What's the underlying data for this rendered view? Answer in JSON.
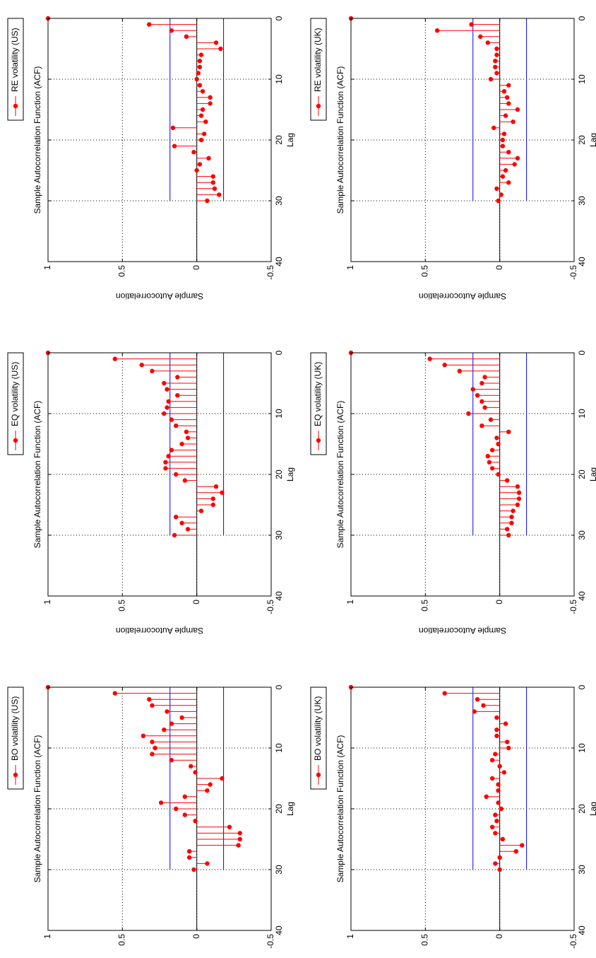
{
  "chart_data": [
    {
      "type": "stem",
      "title": "Sample Autocorrelation Function (ACF)",
      "xlabel": "Lag",
      "ylabel": "Sample Autocorrelation",
      "xlim": [
        0,
        40
      ],
      "ylim": [
        -0.5,
        1
      ],
      "xticks": [
        "0",
        "10",
        "20",
        "30",
        "40"
      ],
      "yticks": [
        "-0.5",
        "0",
        "0.5",
        "1"
      ],
      "grid": true,
      "orientation": "rotated-90-ccw",
      "confidence_bound": 0.18,
      "legend": "RE volatility (US)",
      "legend_position": "top-left",
      "series": {
        "lags": [
          0,
          1,
          2,
          3,
          4,
          5,
          6,
          7,
          8,
          9,
          10,
          11,
          12,
          13,
          14,
          15,
          16,
          17,
          18,
          19,
          20,
          21,
          22,
          23,
          24,
          25,
          26,
          27,
          28,
          29,
          30
        ],
        "values": [
          1.0,
          0.32,
          0.17,
          0.07,
          -0.13,
          -0.16,
          -0.03,
          -0.02,
          -0.02,
          -0.01,
          0.0,
          -0.02,
          -0.04,
          -0.09,
          -0.09,
          -0.04,
          -0.03,
          -0.06,
          0.16,
          -0.05,
          -0.03,
          0.15,
          0.02,
          -0.08,
          -0.02,
          0.0,
          -0.11,
          -0.11,
          -0.12,
          -0.15,
          -0.07
        ]
      }
    },
    {
      "type": "stem",
      "title": "Sample Autocorrelation Function (ACF)",
      "xlabel": "Lag",
      "ylabel": "Sample Autocorrelation",
      "xlim": [
        0,
        40
      ],
      "ylim": [
        -0.5,
        1
      ],
      "xticks": [
        "0",
        "10",
        "20",
        "30",
        "40"
      ],
      "yticks": [
        "-0.5",
        "0",
        "0.5",
        "1"
      ],
      "grid": true,
      "orientation": "rotated-90-ccw",
      "confidence_bound": 0.18,
      "legend": "EQ volatility (US)",
      "legend_position": "top-left",
      "series": {
        "lags": [
          0,
          1,
          2,
          3,
          4,
          5,
          6,
          7,
          8,
          9,
          10,
          11,
          12,
          13,
          14,
          15,
          16,
          17,
          18,
          19,
          20,
          21,
          22,
          23,
          24,
          25,
          26,
          27,
          28,
          29,
          30
        ],
        "values": [
          1.0,
          0.55,
          0.37,
          0.3,
          0.13,
          0.22,
          0.2,
          0.13,
          0.19,
          0.2,
          0.22,
          0.17,
          0.14,
          0.07,
          0.06,
          0.1,
          0.17,
          0.19,
          0.21,
          0.21,
          0.14,
          0.08,
          -0.13,
          -0.17,
          -0.11,
          -0.11,
          -0.03,
          0.14,
          0.1,
          0.06,
          0.15
        ]
      }
    },
    {
      "type": "stem",
      "title": "Sample Autocorrelation Function (ACF)",
      "xlabel": "Lag",
      "ylabel": "Sample Autocorrelation",
      "xlim": [
        0,
        40
      ],
      "ylim": [
        -0.5,
        1
      ],
      "xticks": [
        "0",
        "10",
        "20",
        "30",
        "40"
      ],
      "yticks": [
        "-0.5",
        "0",
        "0.5",
        "1"
      ],
      "grid": true,
      "orientation": "rotated-90-ccw",
      "confidence_bound": 0.18,
      "legend": "BO volatility (US)",
      "legend_position": "top-left",
      "series": {
        "lags": [
          0,
          1,
          2,
          3,
          4,
          5,
          6,
          7,
          8,
          9,
          10,
          11,
          12,
          13,
          14,
          15,
          16,
          17,
          18,
          19,
          20,
          21,
          22,
          23,
          24,
          25,
          26,
          27,
          28,
          29,
          30
        ],
        "values": [
          1.0,
          0.55,
          0.32,
          0.3,
          0.2,
          0.1,
          0.17,
          0.22,
          0.36,
          0.3,
          0.28,
          0.3,
          0.17,
          0.04,
          0.01,
          -0.17,
          -0.09,
          -0.07,
          0.08,
          0.24,
          0.14,
          0.08,
          0.01,
          -0.22,
          -0.29,
          -0.29,
          -0.28,
          0.05,
          0.05,
          -0.07,
          0.02
        ]
      }
    },
    {
      "type": "stem",
      "title": "Sample Autocorrelation Function (ACF)",
      "xlabel": "Lag",
      "ylabel": "Sample Autocorrelation",
      "xlim": [
        0,
        40
      ],
      "ylim": [
        -0.5,
        1
      ],
      "xticks": [
        "0",
        "10",
        "20",
        "30",
        "40"
      ],
      "yticks": [
        "-0.5",
        "0",
        "0.5",
        "1"
      ],
      "grid": true,
      "orientation": "rotated-90-ccw",
      "confidence_bound": 0.18,
      "legend": "RE volatility (UK)",
      "legend_position": "top-left",
      "series": {
        "lags": [
          0,
          1,
          2,
          3,
          4,
          5,
          6,
          7,
          8,
          9,
          10,
          11,
          12,
          13,
          14,
          15,
          16,
          17,
          18,
          19,
          20,
          21,
          22,
          23,
          24,
          25,
          26,
          27,
          28,
          29,
          30
        ],
        "values": [
          1.0,
          0.19,
          0.42,
          0.13,
          0.08,
          0.02,
          0.02,
          0.03,
          0.03,
          0.02,
          0.06,
          -0.06,
          -0.03,
          -0.05,
          -0.06,
          -0.12,
          -0.04,
          -0.09,
          0.04,
          -0.03,
          -0.02,
          -0.02,
          -0.06,
          -0.12,
          -0.1,
          -0.04,
          -0.02,
          -0.06,
          0.02,
          -0.01,
          0.01
        ]
      }
    },
    {
      "type": "stem",
      "title": "Sample Autocorrelation Function (ACF)",
      "xlabel": "Lag",
      "ylabel": "Sample Autocorrelation",
      "xlim": [
        0,
        40
      ],
      "ylim": [
        -0.5,
        1
      ],
      "xticks": [
        "0",
        "10",
        "20",
        "30",
        "40"
      ],
      "yticks": [
        "-0.5",
        "0",
        "0.5",
        "1"
      ],
      "grid": true,
      "orientation": "rotated-90-ccw",
      "confidence_bound": 0.18,
      "legend": "EQ volatility (UK)",
      "legend_position": "top-left",
      "series": {
        "lags": [
          0,
          1,
          2,
          3,
          4,
          5,
          6,
          7,
          8,
          9,
          10,
          11,
          12,
          13,
          14,
          15,
          16,
          17,
          18,
          19,
          20,
          21,
          22,
          23,
          24,
          25,
          26,
          27,
          28,
          29,
          30
        ],
        "values": [
          1.0,
          0.47,
          0.37,
          0.27,
          0.1,
          0.12,
          0.18,
          0.15,
          0.12,
          0.1,
          0.21,
          0.06,
          0.12,
          -0.06,
          0.02,
          0.01,
          0.05,
          0.08,
          0.07,
          0.05,
          0.01,
          -0.05,
          -0.12,
          -0.13,
          -0.13,
          -0.12,
          -0.09,
          -0.08,
          -0.08,
          -0.05,
          -0.06
        ]
      }
    },
    {
      "type": "stem",
      "title": "Sample Autocorrelation Function (ACF)",
      "xlabel": "Lag",
      "ylabel": "Sample Autocorrelation",
      "xlim": [
        0,
        40
      ],
      "ylim": [
        -0.5,
        1
      ],
      "xticks": [
        "0",
        "10",
        "20",
        "30",
        "40"
      ],
      "yticks": [
        "-0.5",
        "0",
        "0.5",
        "1"
      ],
      "grid": true,
      "orientation": "rotated-90-ccw",
      "confidence_bound": 0.18,
      "legend": "BO volatility (UK)",
      "legend_position": "top-left",
      "series": {
        "lags": [
          0,
          1,
          2,
          3,
          4,
          5,
          6,
          7,
          8,
          9,
          10,
          11,
          12,
          13,
          14,
          15,
          16,
          17,
          18,
          19,
          20,
          21,
          22,
          23,
          24,
          25,
          26,
          27,
          28,
          29,
          30
        ],
        "values": [
          1.0,
          0.37,
          0.15,
          0.11,
          0.17,
          0.02,
          -0.04,
          0.02,
          0.02,
          -0.05,
          -0.06,
          0.03,
          0.05,
          0.0,
          -0.03,
          0.05,
          0.01,
          0.01,
          0.09,
          0.01,
          -0.01,
          0.03,
          0.02,
          0.05,
          0.03,
          -0.02,
          -0.15,
          -0.11,
          0.0,
          0.03,
          0.0
        ]
      }
    }
  ]
}
